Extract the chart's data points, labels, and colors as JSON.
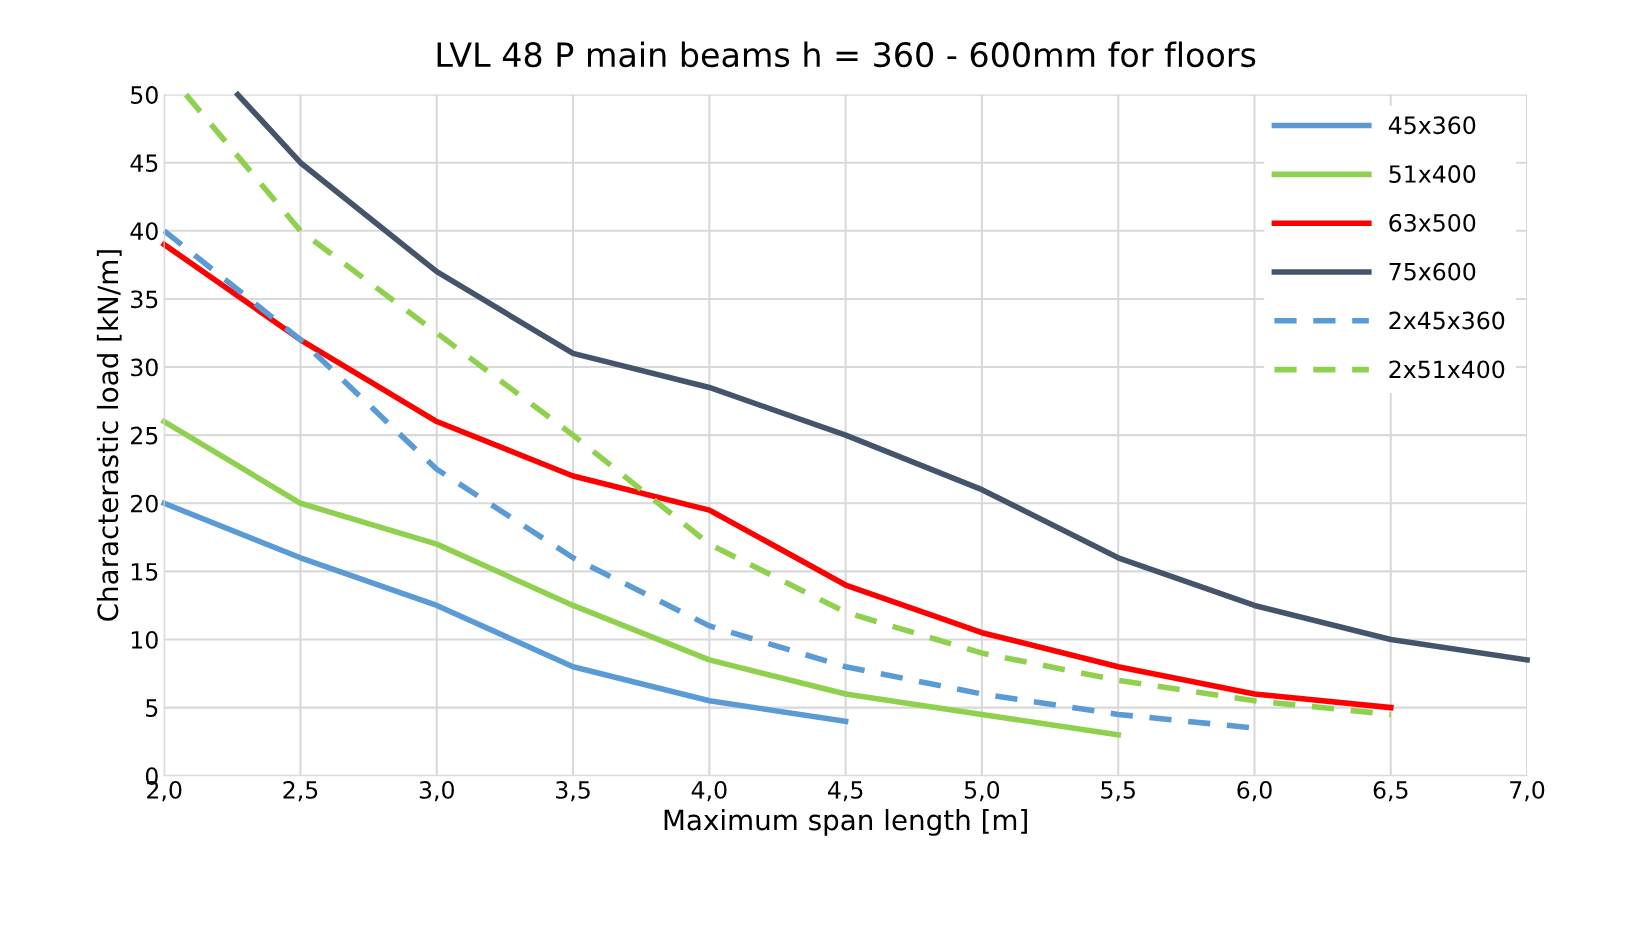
{
  "chart_data": {
    "type": "line",
    "title": "LVL 48 P main beams h = 360 - 600mm for floors",
    "xlabel": "Maximum span length [m]",
    "ylabel": "Characterastic load [kN/m]",
    "xlim": [
      2,
      7
    ],
    "ylim": [
      0,
      50
    ],
    "xticks": [
      {
        "value": 2,
        "label": "2,0"
      },
      {
        "value": 2.5,
        "label": "2,5"
      },
      {
        "value": 3,
        "label": "3,0"
      },
      {
        "value": 3.5,
        "label": "3,5"
      },
      {
        "value": 4,
        "label": "4,0"
      },
      {
        "value": 4.5,
        "label": "4,5"
      },
      {
        "value": 5,
        "label": "5,0"
      },
      {
        "value": 5.5,
        "label": "5,5"
      },
      {
        "value": 6,
        "label": "6,0"
      },
      {
        "value": 6.5,
        "label": "6,5"
      },
      {
        "value": 7,
        "label": "7,0"
      }
    ],
    "yticks": [
      0,
      5,
      10,
      15,
      20,
      25,
      30,
      35,
      40,
      45,
      50
    ],
    "grid": true,
    "legend": "top right",
    "series": [
      {
        "name": "45x360",
        "color": "#5b9bd5",
        "line_style": "solid",
        "x": [
          2,
          2.5,
          3,
          3.5,
          4,
          4.5
        ],
        "values": [
          20,
          16,
          12.5,
          8,
          5.5,
          4
        ]
      },
      {
        "name": "51x400",
        "color": "#8fd14f",
        "line_style": "solid",
        "x": [
          2,
          2.5,
          3,
          3.5,
          4,
          4.5,
          5,
          5.5
        ],
        "values": [
          26,
          20,
          17,
          12.5,
          8.5,
          6,
          4.5,
          3
        ]
      },
      {
        "name": "63x500",
        "color": "#ff0000",
        "line_style": "solid",
        "x": [
          2,
          2.5,
          3,
          3.5,
          4,
          4.5,
          5,
          5.5,
          6,
          6.5
        ],
        "values": [
          39,
          32,
          26,
          22,
          19.5,
          14,
          10.5,
          8,
          6,
          5
        ]
      },
      {
        "name": "75x600",
        "color": "#44546a",
        "line_style": "solid",
        "x": [
          2.27,
          2.5,
          3,
          3.5,
          4,
          4.5,
          5,
          5.5,
          6,
          6.5,
          7
        ],
        "values": [
          50,
          45,
          37,
          31,
          28.5,
          25,
          21,
          16,
          12.5,
          10,
          8.5
        ]
      },
      {
        "name": "2x45x360",
        "color": "#5b9bd5",
        "line_style": "dashed",
        "x": [
          2,
          2.5,
          3,
          3.5,
          4,
          4.5,
          5,
          5.5,
          6
        ],
        "values": [
          40,
          32,
          22.5,
          16,
          11,
          8,
          6,
          4.5,
          3.5
        ]
      },
      {
        "name": "2x51x400",
        "color": "#8fd14f",
        "line_style": "dashed",
        "x": [
          2.08,
          2.5,
          3,
          3.5,
          4,
          4.5,
          5,
          5.5,
          6,
          6.5
        ],
        "values": [
          50,
          40,
          32.5,
          25,
          17,
          12,
          9,
          7,
          5.5,
          4.5
        ]
      }
    ]
  }
}
